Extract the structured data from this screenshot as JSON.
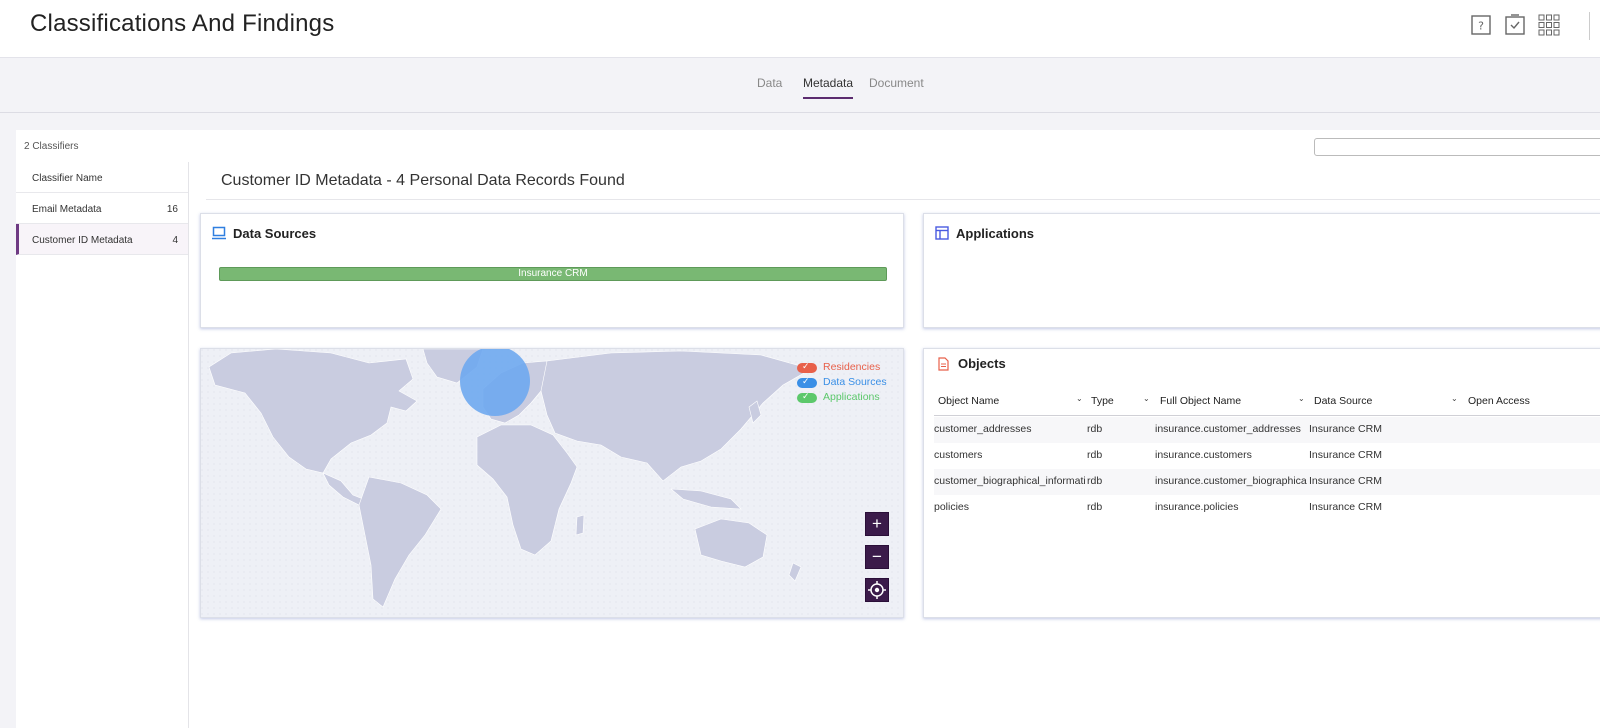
{
  "header": {
    "title": "Classifications And Findings"
  },
  "tabs": [
    {
      "label": "Data",
      "active": false
    },
    {
      "label": "Metadata",
      "active": true
    },
    {
      "label": "Document",
      "active": false
    }
  ],
  "classifiers": {
    "count_label": "2 Classifiers",
    "column_header": "Classifier Name",
    "items": [
      {
        "name": "Email Metadata",
        "count": "16",
        "active": false
      },
      {
        "name": "Customer ID Metadata",
        "count": "4",
        "active": true
      }
    ]
  },
  "section_title": "Customer ID Metadata - 4 Personal Data Records Found",
  "data_sources": {
    "title": "Data Sources",
    "icon": "computer-icon",
    "bar_label": "Insurance CRM"
  },
  "applications": {
    "title": "Applications",
    "icon": "layout-icon"
  },
  "map": {
    "legend": [
      {
        "label": "Residencies",
        "color": "#e8604a"
      },
      {
        "label": "Data Sources",
        "color": "#3a8fe6"
      },
      {
        "label": "Applications",
        "color": "#5cc86b"
      }
    ],
    "zoom_in": "+",
    "zoom_out": "−",
    "bubble_color": "#6ea8f0"
  },
  "objects": {
    "title": "Objects",
    "icon": "document-icon",
    "columns": [
      "Object Name",
      "Type",
      "Full Object Name",
      "Data Source",
      "Open Access"
    ],
    "rows": [
      [
        "customer_addresses",
        "rdb",
        "insurance.customer_addresses",
        "Insurance CRM"
      ],
      [
        "customers",
        "rdb",
        "insurance.customers",
        "Insurance CRM"
      ],
      [
        "customer_biographical_information",
        "rdb",
        "insurance.customer_biographical_information",
        "Insurance CRM"
      ],
      [
        "policies",
        "rdb",
        "insurance.policies",
        "Insurance CRM"
      ]
    ]
  },
  "colors": {
    "accent": "#5b2b6f",
    "bar": "#79b873"
  }
}
